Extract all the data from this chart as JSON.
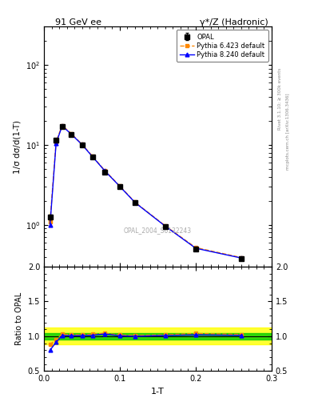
{
  "title_left": "91 GeV ee",
  "title_right": "γ*/Z (Hadronic)",
  "right_label_top": "Rivet 3.1.10; ≥ 300k events",
  "right_label_bottom": "mcplots.cern.ch [arXiv:1306.3436]",
  "watermark": "OPAL_2004_S6132243",
  "xlabel": "1-T",
  "ylabel_main": "1/σ dσ/d(1-T)",
  "ylabel_ratio": "Ratio to OPAL",
  "xlim": [
    0.0,
    0.3
  ],
  "ylim_main_log": [
    0.3,
    300
  ],
  "ylim_ratio": [
    0.5,
    2.0
  ],
  "x_data": [
    0.008,
    0.016,
    0.024,
    0.036,
    0.05,
    0.064,
    0.08,
    0.1,
    0.12,
    0.16,
    0.2,
    0.26
  ],
  "opal_y": [
    1.25,
    11.5,
    17.0,
    13.5,
    10.0,
    7.0,
    4.6,
    3.0,
    1.9,
    0.95,
    0.5,
    0.38
  ],
  "opal_yerr": [
    0.08,
    0.5,
    0.6,
    0.5,
    0.4,
    0.3,
    0.2,
    0.13,
    0.08,
    0.04,
    0.02,
    0.015
  ],
  "pythia6_y": [
    1.1,
    11.0,
    17.5,
    13.8,
    10.2,
    7.2,
    4.8,
    3.05,
    1.92,
    0.97,
    0.52,
    0.39
  ],
  "pythia8_y": [
    1.0,
    10.5,
    17.2,
    13.6,
    10.1,
    7.1,
    4.75,
    3.02,
    1.9,
    0.96,
    0.51,
    0.385
  ],
  "ratio_pythia6": [
    0.88,
    0.957,
    1.03,
    1.022,
    1.02,
    1.029,
    1.043,
    1.017,
    1.011,
    1.021,
    1.04,
    1.026
  ],
  "ratio_pythia8": [
    0.8,
    0.913,
    1.012,
    1.007,
    1.01,
    1.014,
    1.033,
    1.007,
    1.0,
    1.011,
    1.02,
    1.013
  ],
  "opal_color": "#000000",
  "pythia6_color": "#ff8800",
  "pythia8_color": "#0000ff",
  "background_color": "#ffffff",
  "ratio_band_green": 0.05,
  "ratio_band_yellow": 0.12
}
